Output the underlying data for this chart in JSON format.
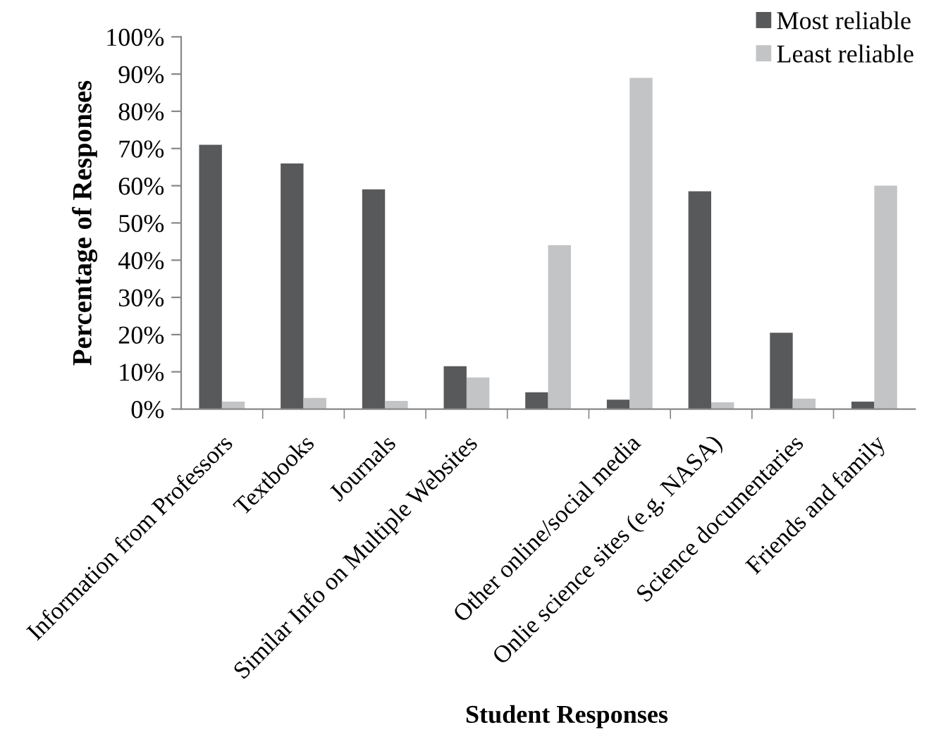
{
  "chart_data": {
    "type": "bar",
    "xlabel": "Student Responses",
    "ylabel": "Percentage of Responses",
    "categories": [
      "Information from Professors",
      "Textbooks",
      "Journals",
      "Similar Info on Multiple Websites",
      null,
      "Other online/social media",
      "Onlie science sites (e.g. NASA)",
      "Science documentaries",
      "Friends and family"
    ],
    "series": [
      {
        "name": "Most reliable",
        "color": "#58595b",
        "values": [
          71,
          66,
          59,
          11.5,
          4.5,
          2.5,
          58.5,
          20.5,
          2
        ]
      },
      {
        "name": "Least reliable",
        "color": "#c3c4c6",
        "values": [
          2,
          3,
          2.2,
          8.5,
          44,
          89,
          1.8,
          2.8,
          60
        ]
      }
    ],
    "ylim": [
      0,
      100
    ],
    "yticks": [
      {
        "value": 0,
        "label": "0%"
      },
      {
        "value": 10,
        "label": "10%"
      },
      {
        "value": 20,
        "label": "20%"
      },
      {
        "value": 30,
        "label": "30%"
      },
      {
        "value": 40,
        "label": "40%"
      },
      {
        "value": 50,
        "label": "50%"
      },
      {
        "value": 60,
        "label": "60%"
      },
      {
        "value": 70,
        "label": "70%"
      },
      {
        "value": 80,
        "label": "80%"
      },
      {
        "value": 90,
        "label": "90%"
      },
      {
        "value": 100,
        "label": "100%"
      }
    ],
    "grid": false,
    "legend": "top right"
  }
}
